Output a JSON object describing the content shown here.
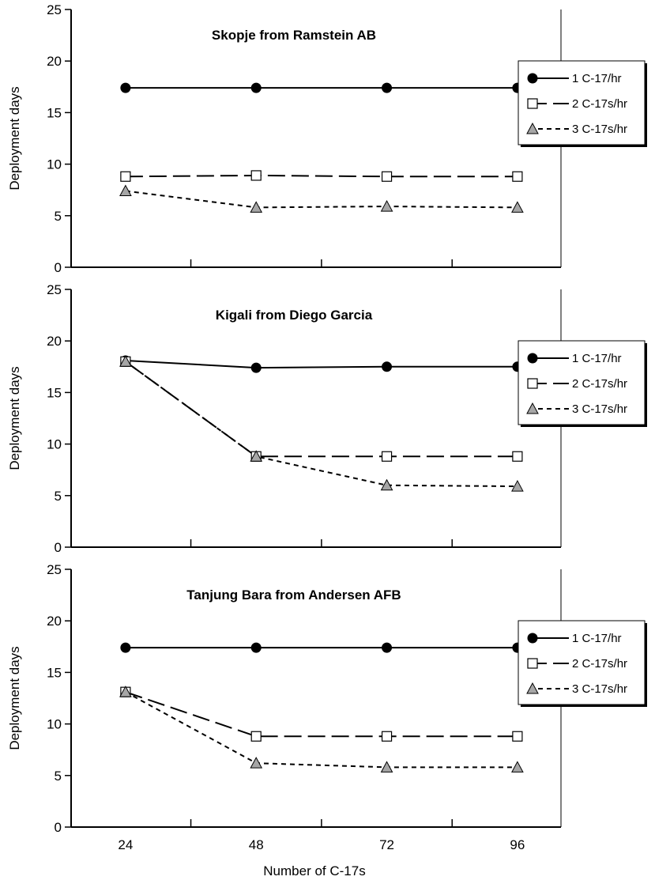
{
  "figure": {
    "xlabel": "Number of C-17s",
    "ylabel": "Deployment days",
    "x_ticks": [
      "24",
      "48",
      "72",
      "96"
    ],
    "y_ticks": [
      "0",
      "5",
      "10",
      "15",
      "20",
      "25"
    ],
    "legend": [
      {
        "name": "1 C-17/hr",
        "marker": "filled-circle",
        "line": "solid"
      },
      {
        "name": "2 C-17s/hr",
        "marker": "open-square",
        "line": "long-dash"
      },
      {
        "name": "3 C-17s/hr",
        "marker": "gray-triangle",
        "line": "short-dash"
      }
    ],
    "colors": {
      "triangle_fill": "#a6a6a6",
      "line": "#000000"
    }
  },
  "chart_data": [
    {
      "type": "line",
      "title": "Skopje from Ramstein AB",
      "xlabel": "",
      "ylabel": "Deployment days",
      "x": [
        24,
        48,
        72,
        96
      ],
      "ylim": [
        0,
        25
      ],
      "grid": false,
      "legend_position": "right",
      "series": [
        {
          "name": "1 C-17/hr",
          "values": [
            17.4,
            17.4,
            17.4,
            17.4
          ]
        },
        {
          "name": "2 C-17s/hr",
          "values": [
            8.8,
            8.9,
            8.8,
            8.8
          ]
        },
        {
          "name": "3 C-17s/hr",
          "values": [
            7.4,
            5.8,
            5.9,
            5.8
          ]
        }
      ]
    },
    {
      "type": "line",
      "title": "Kigali from Diego Garcia",
      "xlabel": "",
      "ylabel": "Deployment days",
      "x": [
        24,
        48,
        72,
        96
      ],
      "ylim": [
        0,
        25
      ],
      "grid": false,
      "legend_position": "right",
      "series": [
        {
          "name": "1 C-17/hr",
          "values": [
            18.1,
            17.4,
            17.5,
            17.5
          ]
        },
        {
          "name": "2 C-17s/hr",
          "values": [
            18.0,
            8.8,
            8.8,
            8.8
          ]
        },
        {
          "name": "3 C-17s/hr",
          "values": [
            18.0,
            8.8,
            6.0,
            5.9
          ]
        }
      ]
    },
    {
      "type": "line",
      "title": "Tanjung Bara from Andersen AFB",
      "xlabel": "Number of C-17s",
      "ylabel": "Deployment days",
      "x": [
        24,
        48,
        72,
        96
      ],
      "ylim": [
        0,
        25
      ],
      "grid": false,
      "legend_position": "right",
      "series": [
        {
          "name": "1 C-17/hr",
          "values": [
            17.4,
            17.4,
            17.4,
            17.4
          ]
        },
        {
          "name": "2 C-17s/hr",
          "values": [
            13.1,
            8.8,
            8.8,
            8.8
          ]
        },
        {
          "name": "3 C-17s/hr",
          "values": [
            13.1,
            6.2,
            5.8,
            5.8
          ]
        }
      ]
    }
  ]
}
